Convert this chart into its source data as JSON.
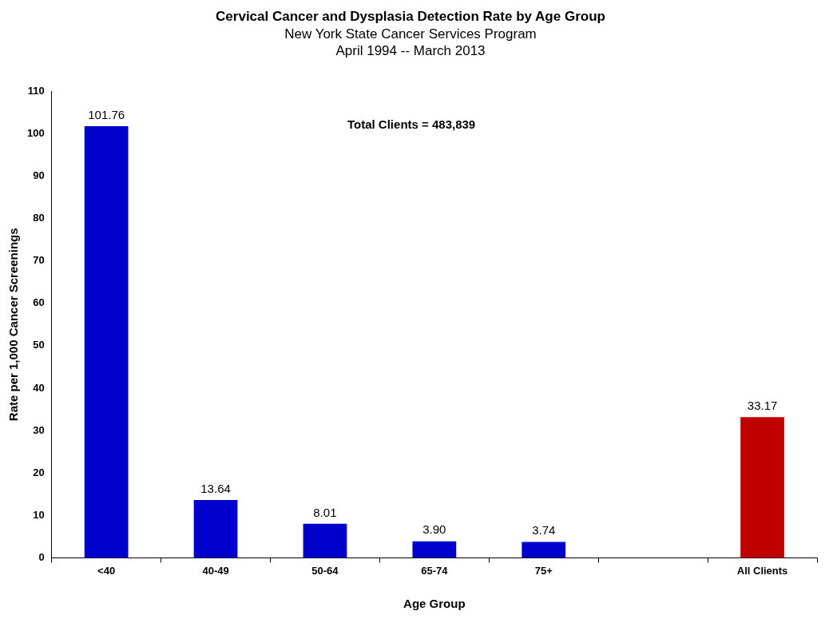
{
  "chart_data": {
    "type": "bar",
    "title": "Cervical Cancer and Dysplasia Detection Rate by Age Group",
    "subtitle": "New York State Cancer Services Program\nApril 1994 -- March 2013",
    "xlabel": "Age Group",
    "ylabel": "Rate per 1,000 Cancer Screenings",
    "categories": [
      "<40",
      "40-49",
      "50-64",
      "65-74",
      "75+",
      null,
      "All Clients"
    ],
    "values": [
      101.76,
      13.64,
      8.01,
      3.9,
      3.74,
      null,
      33.17
    ],
    "value_labels": [
      "101.76",
      "13.64",
      "8.01",
      "3.90",
      "3.74",
      null,
      "33.17"
    ],
    "colors": [
      "#0000cc",
      "#0000cc",
      "#0000cc",
      "#0000cc",
      "#0000cc",
      "#0000cc",
      "#c00000"
    ],
    "ylim": [
      0,
      110
    ],
    "yticks": [
      0,
      10,
      20,
      30,
      40,
      50,
      60,
      70,
      80,
      90,
      100,
      110
    ],
    "grid": false,
    "legend": false,
    "annotations": [
      "Total Clients = 483,839"
    ]
  }
}
